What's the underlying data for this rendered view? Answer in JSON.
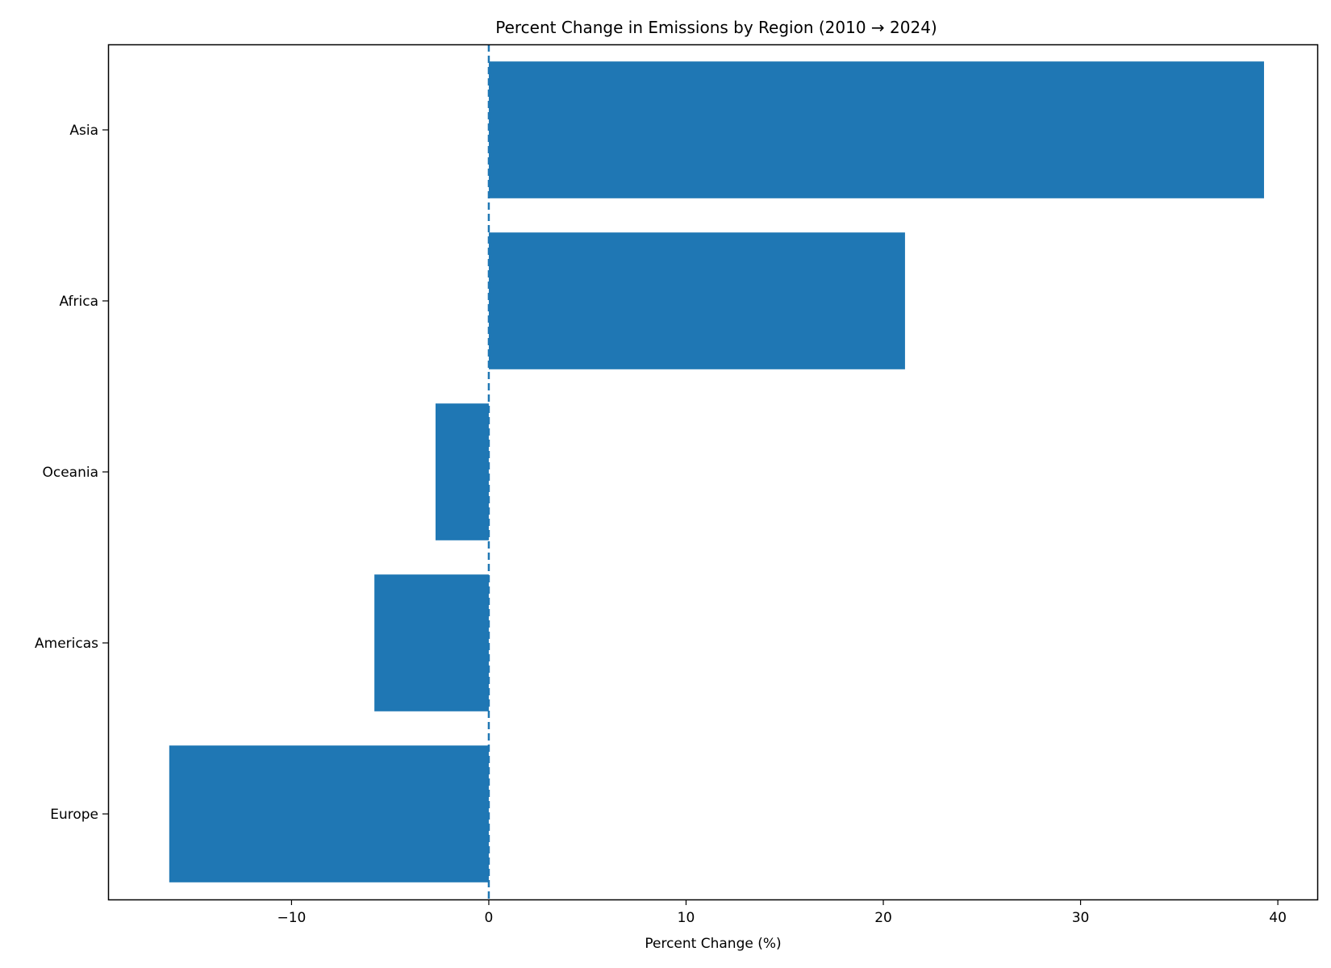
{
  "chart_data": {
    "type": "bar",
    "orientation": "horizontal",
    "title": "Percent Change in Emissions by Region (2010 → 2024)",
    "xlabel": "Percent Change (%)",
    "ylabel": "",
    "categories": [
      "Europe",
      "Americas",
      "Oceania",
      "Africa",
      "Asia"
    ],
    "values": [
      -16.2,
      -5.8,
      -2.7,
      21.1,
      39.3
    ],
    "xlim": [
      -19.3,
      42.0
    ],
    "xticks": [
      -10,
      0,
      10,
      20,
      30,
      40
    ],
    "xtick_labels": [
      "−10",
      "0",
      "10",
      "20",
      "30",
      "40"
    ],
    "reference_line": {
      "x": 0,
      "style": "dashed"
    },
    "grid": false,
    "legend": "none",
    "colors": {
      "bar": "#1f77b4",
      "reference_line": "#1f77b4",
      "axes": "#000000"
    }
  }
}
